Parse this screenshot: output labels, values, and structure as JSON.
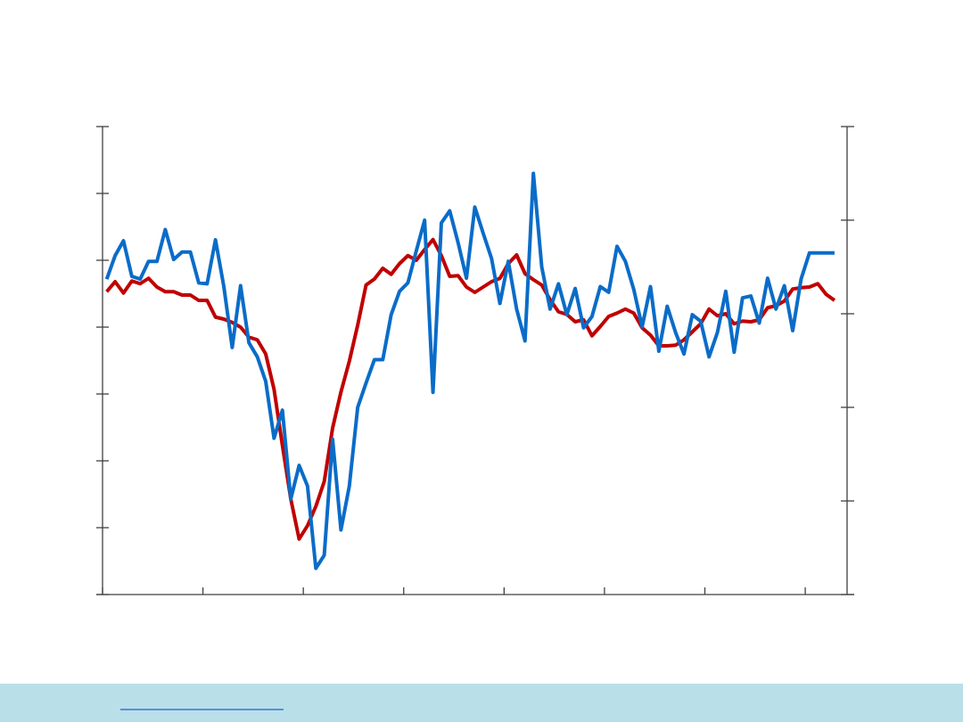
{
  "chart_data": {
    "type": "line",
    "x": [
      0.5,
      1.5,
      2.5,
      3.5,
      4.5,
      5.5,
      6.5,
      7.5,
      8.5,
      9.5,
      10.5,
      11.5,
      12.5,
      13.5,
      14.5,
      15.5,
      16.5,
      17.5,
      18.5,
      19.5,
      20.5,
      21.5,
      22.5,
      23.5,
      24.5,
      25.5,
      26.5,
      27.5,
      28.5,
      29.5,
      30.5,
      31.5,
      32.5,
      33.5,
      34.5,
      35.5,
      36.5,
      37.5,
      38.5,
      39.5,
      40.5,
      41.5,
      42.5,
      43.5,
      44.5,
      45.5,
      46.5,
      47.5,
      48.5,
      49.5,
      50.5,
      51.5,
      52.5,
      53.5,
      54.5,
      55.5,
      56.5,
      57.5,
      58.5,
      59.5,
      60.5,
      61.5,
      62.5,
      63.5,
      64.5,
      65.5,
      66.5,
      67.5,
      68.5,
      69.5,
      70.5,
      71.5,
      72.5,
      73.5,
      74.5,
      75.5,
      76.5,
      77.5,
      78.5,
      79.5,
      80.5,
      81.5,
      82.5,
      83.5,
      84.5,
      85.5,
      86.5,
      87.5
    ],
    "xlim": [
      0,
      89
    ],
    "xticks": [
      0,
      12,
      24,
      36,
      48,
      60,
      72,
      84
    ],
    "ylim": [
      0,
      7
    ],
    "yticks": [
      0,
      1,
      2,
      3,
      4,
      5,
      6,
      7
    ],
    "y2lim": [
      0,
      5
    ],
    "y2ticks": [
      0,
      1,
      2,
      3,
      4,
      5
    ],
    "series": [
      {
        "color": "#c00000",
        "values": [
          4.53,
          4.68,
          4.51,
          4.69,
          4.65,
          4.73,
          4.6,
          4.53,
          4.53,
          4.48,
          4.48,
          4.4,
          4.4,
          4.15,
          4.12,
          4.07,
          4.0,
          3.85,
          3.81,
          3.6,
          3.07,
          2.23,
          1.43,
          0.83,
          1.03,
          1.32,
          1.69,
          2.49,
          3.03,
          3.49,
          4.03,
          4.63,
          4.72,
          4.88,
          4.79,
          4.95,
          5.07,
          5.0,
          5.16,
          5.31,
          5.07,
          4.76,
          4.77,
          4.6,
          4.52,
          4.6,
          4.68,
          4.73,
          4.95,
          5.08,
          4.8,
          4.71,
          4.63,
          4.41,
          4.23,
          4.19,
          4.08,
          4.11,
          3.87,
          4.01,
          4.16,
          4.21,
          4.27,
          4.21,
          3.99,
          3.88,
          3.72,
          3.72,
          3.73,
          3.81,
          3.93,
          4.05,
          4.27,
          4.17,
          4.2,
          4.05,
          4.09,
          4.08,
          4.11,
          4.29,
          4.32,
          4.39,
          4.57,
          4.59,
          4.6,
          4.65,
          4.49,
          4.4
        ]
      },
      {
        "color": "#0a6cc8",
        "axis": "y2",
        "values": [
          3.37,
          3.62,
          3.78,
          3.4,
          3.37,
          3.56,
          3.56,
          3.9,
          3.58,
          3.66,
          3.66,
          3.33,
          3.32,
          3.79,
          3.29,
          2.64,
          3.3,
          2.69,
          2.54,
          2.28,
          1.67,
          1.97,
          1.02,
          1.38,
          1.16,
          0.28,
          0.42,
          1.66,
          0.69,
          1.16,
          2.0,
          2.26,
          2.51,
          2.51,
          2.99,
          3.24,
          3.33,
          3.67,
          4.0,
          2.16,
          3.97,
          4.1,
          3.76,
          3.38,
          4.14,
          3.86,
          3.59,
          3.11,
          3.56,
          3.05,
          2.71,
          4.5,
          3.5,
          3.05,
          3.32,
          2.99,
          3.27,
          2.85,
          2.97,
          3.29,
          3.23,
          3.72,
          3.56,
          3.26,
          2.86,
          3.29,
          2.6,
          3.08,
          2.8,
          2.57,
          2.99,
          2.92,
          2.54,
          2.8,
          3.24,
          2.59,
          3.17,
          3.19,
          2.9,
          3.38,
          3.05,
          3.3,
          2.82,
          3.37,
          3.65,
          3.65,
          3.65,
          3.65
        ]
      }
    ]
  }
}
